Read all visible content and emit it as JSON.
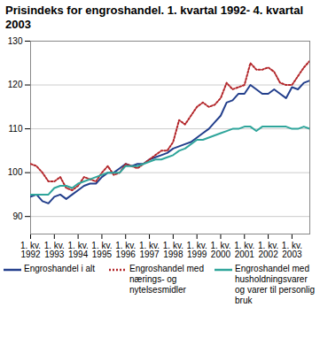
{
  "chart_data": {
    "type": "line",
    "title": "Prisindeks for engroshandel. 1. kvartal 1992- 4. kvartal 2003",
    "categories": [
      "1. kv. 1992",
      null,
      null,
      null,
      "1. kv. 1993",
      null,
      null,
      null,
      "1. kv. 1994",
      null,
      null,
      null,
      "1. kv. 1995",
      null,
      null,
      null,
      "1. kv. 1996",
      null,
      null,
      null,
      "1. kv. 1997",
      null,
      null,
      null,
      "1. kv. 1998",
      null,
      null,
      null,
      "1. kv. 1999",
      null,
      null,
      null,
      "1. kv. 2000",
      null,
      null,
      null,
      "1. kv. 2001",
      null,
      null,
      null,
      "1. kv. 2002",
      null,
      null,
      null,
      "1. kv. 2003",
      null,
      null,
      null
    ],
    "series": [
      {
        "name": "Engroshandel i alt",
        "color": "#233f8c",
        "line_style": "solid",
        "values": [
          94.5,
          95,
          93.5,
          93,
          94.5,
          95,
          94,
          95,
          96,
          97,
          97.5,
          97.5,
          99,
          100,
          100,
          101,
          102,
          101.5,
          102,
          102,
          103,
          103.5,
          104,
          104.5,
          105.5,
          106,
          106.5,
          107,
          108,
          109,
          110,
          111.5,
          113,
          116,
          116.5,
          118,
          118,
          120,
          119,
          118,
          118,
          119,
          118,
          117,
          119.5,
          119,
          120.5,
          121
        ]
      },
      {
        "name": "Engroshandel med nærings- og nytelsesmidler",
        "color": "#b3262a",
        "line_style": "dotted",
        "values": [
          102,
          101.5,
          100,
          98,
          98,
          99,
          96.5,
          96,
          97,
          99,
          98.5,
          98,
          100,
          101.5,
          99.5,
          100,
          102,
          101.5,
          101,
          102,
          103,
          104,
          105,
          105,
          107,
          112,
          111,
          113,
          115,
          116,
          115,
          115.5,
          117,
          120.5,
          119,
          119.5,
          120,
          125,
          123.5,
          123.5,
          124,
          123,
          120.5,
          120,
          120,
          122,
          124,
          125.5
        ]
      },
      {
        "name": "Engroshandel med husholdningsvarer og varer til personlig bruk",
        "color": "#2fa59b",
        "line_style": "solid",
        "values": [
          95,
          95,
          95,
          95,
          96.5,
          97,
          97,
          96.5,
          97.5,
          98,
          98.5,
          99,
          99.5,
          100,
          100,
          100,
          101.5,
          101.5,
          101.5,
          102,
          102.5,
          103,
          103,
          103.5,
          104,
          105,
          105.5,
          106.5,
          107.5,
          107.5,
          108,
          108.5,
          109,
          109.5,
          110,
          110,
          110.5,
          110.5,
          109.5,
          110.5,
          110.5,
          110.5,
          110.5,
          110.5,
          110,
          110,
          110.5,
          110
        ]
      }
    ],
    "ylim": [
      86,
      130
    ],
    "yticks": [
      90,
      100,
      110,
      120,
      130
    ],
    "grid": true
  }
}
